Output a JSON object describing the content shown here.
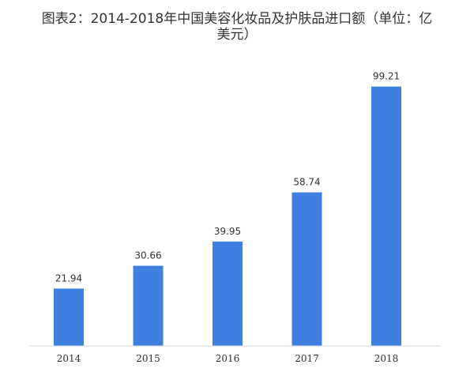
{
  "chart_data": {
    "type": "bar",
    "title_line1": "图表2：2014-2018年中国美容化妆品及护肤品进口额（单位：亿",
    "title_line2": "美元）",
    "categories": [
      "2014",
      "2015",
      "2016",
      "2017",
      "2018"
    ],
    "values": [
      21.94,
      30.66,
      39.95,
      58.74,
      99.21
    ],
    "value_labels": [
      "21.94",
      "30.66",
      "39.95",
      "58.74",
      "99.21"
    ],
    "ylim": [
      0,
      100
    ],
    "grid": false,
    "bar_color": "#3e7fe0",
    "axis_color": "#d9d9d9"
  }
}
